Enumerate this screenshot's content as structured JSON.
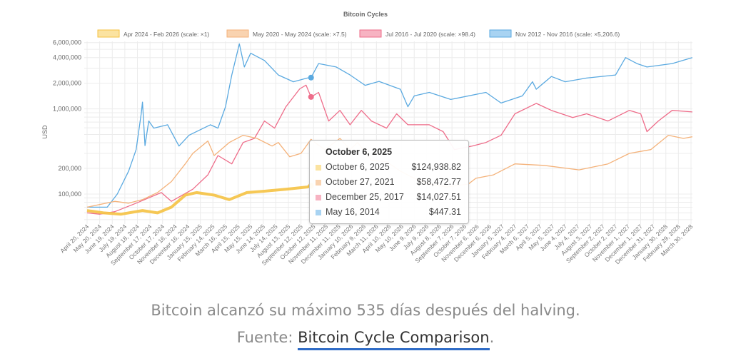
{
  "chart_data": {
    "type": "line",
    "title": "Bitcoin Cycles",
    "ylabel": "USD",
    "xlabel": "",
    "yscale": "log",
    "ylim": [
      48000,
      6200000
    ],
    "yticks": [
      {
        "value": 6000000,
        "label": "6,000,000"
      },
      {
        "value": 4000000,
        "label": "4,000,000"
      },
      {
        "value": 2000000,
        "label": "2,000,000"
      },
      {
        "value": 1000000,
        "label": "1,000,000"
      },
      {
        "value": 200000,
        "label": "200,000"
      },
      {
        "value": 100000,
        "label": "100,000"
      }
    ],
    "x_categories": [
      "April 20, 2024",
      "May 20, 2024",
      "June 19, 2024",
      "July 19, 2024",
      "August 18, 2024",
      "September 17, 2024",
      "October 17, 2024",
      "November 16, 2024",
      "December 16, 2024",
      "January 15, 2025",
      "February 14, 2025",
      "March 16, 2025",
      "April 15, 2025",
      "May 15, 2025",
      "June 14, 2025",
      "July 14, 2025",
      "August 13, 2025",
      "September 12, 2025",
      "October 12, 2025",
      "November 11, 2025",
      "December 11, 2025",
      "January 10, 2026",
      "February 9, 2026",
      "March 11, 2026",
      "April 10, 2026",
      "May 10, 2026",
      "June 9, 2026",
      "July 9, 2026",
      "August 8, 2026",
      "September 7, 2026",
      "October 7, 2026",
      "November 6, 2026",
      "December 6, 2026",
      "January 5, 2027",
      "February 4, 2027",
      "March 6, 2027",
      "April 5, 2027",
      "May 5, 2027",
      "June 4, 2027",
      "July 4, 2027",
      "August 3, 2027",
      "September 2, 2027",
      "October 2, 2027",
      "November 1, 2027",
      "December 1, 2027",
      "December 31, 2027",
      "January 30, 2028",
      "February 29, 2028",
      "March 30, 2028"
    ],
    "grid": true,
    "legend_position": "top",
    "series": [
      {
        "name": "Apr 2024 - Feb 2026 (scale: ×1)",
        "color": "#f5c242",
        "fill": "#fbe3a1",
        "points": [
          [
            0,
            64000
          ],
          [
            1.3,
            60000
          ],
          [
            2.7,
            58000
          ],
          [
            4.4,
            64000
          ],
          [
            5.6,
            60000
          ],
          [
            6.7,
            70000
          ],
          [
            7.8,
            97000
          ],
          [
            8.7,
            104000
          ],
          [
            10.1,
            97000
          ],
          [
            11.3,
            86000
          ],
          [
            12.7,
            104000
          ],
          [
            14.1,
            108000
          ],
          [
            15.8,
            114000
          ],
          [
            17.5,
            121000
          ],
          [
            17.8,
            124938.82
          ]
        ]
      },
      {
        "name": "May 2020 - May 2024 (scale: ×7.5)",
        "color": "#f4b27a",
        "fill": "#f9d3b0",
        "points": [
          [
            0,
            70000
          ],
          [
            2.2,
            82000
          ],
          [
            3.3,
            78000
          ],
          [
            4.4,
            86000
          ],
          [
            5.6,
            104000
          ],
          [
            6.7,
            140000
          ],
          [
            7.8,
            226000
          ],
          [
            8.4,
            300000
          ],
          [
            9.6,
            420000
          ],
          [
            10.1,
            283000
          ],
          [
            11.3,
            403000
          ],
          [
            12.4,
            490000
          ],
          [
            13.5,
            450000
          ],
          [
            14.7,
            366000
          ],
          [
            15.2,
            403000
          ],
          [
            16.1,
            274000
          ],
          [
            17,
            300000
          ],
          [
            17.8,
            438546
          ],
          [
            18.1,
            403000
          ],
          [
            18.9,
            332000
          ],
          [
            20.1,
            450000
          ],
          [
            20.9,
            332000
          ],
          [
            21.5,
            403000
          ],
          [
            22.6,
            250000
          ],
          [
            23.8,
            240000
          ],
          [
            24.9,
            186000
          ],
          [
            26,
            153000
          ],
          [
            27.2,
            131000
          ],
          [
            28.6,
            121000
          ],
          [
            30.3,
            131000
          ],
          [
            30.9,
            153000
          ],
          [
            32.3,
            168000
          ],
          [
            34,
            226000
          ],
          [
            36.3,
            217000
          ],
          [
            39.1,
            192000
          ],
          [
            41.4,
            226000
          ],
          [
            43.1,
            300000
          ],
          [
            44.8,
            332000
          ],
          [
            46.2,
            490000
          ],
          [
            47.4,
            450000
          ],
          [
            48.1,
            470000
          ]
        ]
      },
      {
        "name": "Jul 2016 - Jul 2020 (scale: ×98.4)",
        "color": "#ee6d8a",
        "fill": "#f7b3c2",
        "points": [
          [
            0,
            60000
          ],
          [
            1,
            58000
          ],
          [
            2.2,
            62000
          ],
          [
            3.9,
            78000
          ],
          [
            5.9,
            104000
          ],
          [
            6.7,
            82000
          ],
          [
            8.4,
            114000
          ],
          [
            9.6,
            168000
          ],
          [
            10.4,
            283000
          ],
          [
            11.5,
            226000
          ],
          [
            12.4,
            403000
          ],
          [
            13.3,
            450000
          ],
          [
            14.1,
            720000
          ],
          [
            14.9,
            594000
          ],
          [
            15.8,
            1060000
          ],
          [
            16.9,
            1720000
          ],
          [
            17.4,
            1900000
          ],
          [
            17.8,
            1380307
          ],
          [
            18.4,
            1560000
          ],
          [
            19.2,
            720000
          ],
          [
            20.1,
            960000
          ],
          [
            20.9,
            650000
          ],
          [
            21.8,
            960000
          ],
          [
            22.6,
            720000
          ],
          [
            23.8,
            594000
          ],
          [
            24.6,
            875000
          ],
          [
            25.5,
            650000
          ],
          [
            27.2,
            650000
          ],
          [
            28.3,
            540000
          ],
          [
            29.2,
            332000
          ],
          [
            30.6,
            366000
          ],
          [
            31.7,
            403000
          ],
          [
            32.9,
            490000
          ],
          [
            34,
            875000
          ],
          [
            35.7,
            1160000
          ],
          [
            36.9,
            960000
          ],
          [
            38.6,
            790000
          ],
          [
            39.7,
            875000
          ],
          [
            41.4,
            720000
          ],
          [
            43.1,
            960000
          ],
          [
            44,
            875000
          ],
          [
            44.5,
            540000
          ],
          [
            45.4,
            720000
          ],
          [
            46.5,
            960000
          ],
          [
            48.1,
            920000
          ]
        ]
      },
      {
        "name": "Nov 2012 - Nov 2016 (scale: ×5,206.6)",
        "color": "#5aa9e0",
        "fill": "#a8d3f2",
        "points": [
          [
            0,
            70000
          ],
          [
            1.6,
            70000
          ],
          [
            2.4,
            100000
          ],
          [
            3.3,
            186000
          ],
          [
            3.9,
            332000
          ],
          [
            4.3,
            875000
          ],
          [
            4.4,
            1200000
          ],
          [
            4.6,
            370000
          ],
          [
            4.9,
            720000
          ],
          [
            5.3,
            594000
          ],
          [
            6.4,
            650000
          ],
          [
            7.3,
            366000
          ],
          [
            8.1,
            490000
          ],
          [
            9.8,
            650000
          ],
          [
            10.4,
            594000
          ],
          [
            11,
            1060000
          ],
          [
            11.5,
            2500000
          ],
          [
            12.1,
            5800000
          ],
          [
            12.5,
            3100000
          ],
          [
            13,
            4500000
          ],
          [
            14.1,
            3700000
          ],
          [
            15.2,
            2500000
          ],
          [
            16.4,
            2080000
          ],
          [
            17.5,
            2300000
          ],
          [
            17.8,
            2328985
          ],
          [
            18.4,
            3400000
          ],
          [
            19.8,
            3100000
          ],
          [
            20.9,
            2500000
          ],
          [
            22.1,
            1890000
          ],
          [
            23.2,
            2100000
          ],
          [
            24.9,
            1700000
          ],
          [
            25.5,
            1060000
          ],
          [
            26,
            1420000
          ],
          [
            27.2,
            1560000
          ],
          [
            28.9,
            1290000
          ],
          [
            31.7,
            1560000
          ],
          [
            32.9,
            1170000
          ],
          [
            34.6,
            1420000
          ],
          [
            35.4,
            2080000
          ],
          [
            35.7,
            1700000
          ],
          [
            36.9,
            2400000
          ],
          [
            38,
            2080000
          ],
          [
            39.7,
            2300000
          ],
          [
            42,
            2500000
          ],
          [
            42.8,
            4000000
          ],
          [
            43.7,
            3400000
          ],
          [
            44.5,
            3100000
          ],
          [
            46.5,
            3400000
          ],
          [
            48.1,
            4000000
          ]
        ]
      }
    ],
    "tooltip": {
      "title": "October 6, 2025",
      "rows": [
        {
          "label": "October 6, 2025",
          "value": "$124,938.82"
        },
        {
          "label": "October 27, 2021",
          "value": "$58,472.77"
        },
        {
          "label": "December 25, 2017",
          "value": "$14,027.51"
        },
        {
          "label": "May 16, 2014",
          "value": "$447.31"
        }
      ]
    }
  },
  "caption": {
    "line1": "Bitcoin alcanzó su máximo 535 días después del halving.",
    "source_prefix": "Fuente: ",
    "source_link": "Bitcoin Cycle Comparison",
    "source_suffix": "."
  }
}
